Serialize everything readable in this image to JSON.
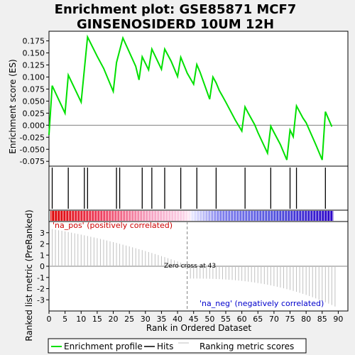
{
  "chart_data": {
    "type": "line",
    "title_lines": [
      "Enrichment plot: GSE85871 MCF7",
      "GINSENOSIDERD 10UM 12H"
    ],
    "xlabel": "Rank in Ordered Dataset",
    "es_ylabel": "Enrichment score (ES)",
    "rank_ylabel": "Ranked list metric (PreRanked)",
    "xlim": [
      0,
      93
    ],
    "x_ticks": [
      0,
      5,
      10,
      15,
      20,
      25,
      30,
      35,
      40,
      45,
      50,
      55,
      60,
      65,
      70,
      75,
      80,
      85,
      90
    ],
    "es_ylim": [
      -0.085,
      0.195
    ],
    "es_ticks": [
      -0.075,
      -0.05,
      -0.025,
      0.0,
      0.025,
      0.05,
      0.075,
      0.1,
      0.125,
      0.15,
      0.175
    ],
    "rank_ylim": [
      -4,
      4
    ],
    "rank_ticks": [
      -3,
      -2,
      -1,
      0,
      1,
      2,
      3
    ],
    "es_profile": {
      "x": [
        0,
        1,
        5,
        6,
        10,
        12,
        15,
        17,
        20,
        21,
        23,
        27,
        28,
        29,
        31,
        32,
        35,
        36,
        38,
        40,
        41,
        43,
        45,
        46,
        47,
        50,
        51,
        52,
        53,
        54,
        55,
        58,
        60,
        61,
        62,
        64,
        65,
        68,
        69,
        70,
        72,
        74,
        75,
        76,
        77,
        79,
        80,
        83,
        85,
        86,
        88
      ],
      "es": [
        -0.02,
        0.082,
        0.025,
        0.104,
        0.048,
        0.183,
        0.143,
        0.118,
        0.07,
        0.13,
        0.181,
        0.122,
        0.094,
        0.142,
        0.115,
        0.158,
        0.116,
        0.158,
        0.133,
        0.101,
        0.141,
        0.108,
        0.085,
        0.126,
        0.11,
        0.054,
        0.1,
        0.088,
        0.072,
        0.06,
        0.048,
        0.01,
        -0.012,
        0.038,
        0.025,
        0.001,
        -0.015,
        -0.058,
        -0.002,
        -0.015,
        -0.04,
        -0.072,
        -0.01,
        -0.024,
        0.04,
        0.015,
        0.005,
        -0.04,
        -0.072,
        0.028,
        -0.003
      ]
    },
    "hits": [
      1,
      6,
      11,
      12,
      21,
      22,
      29,
      32,
      36,
      41,
      46,
      52,
      61,
      69,
      75,
      77,
      86
    ],
    "ranked_metric": {
      "n": 89,
      "start": 3.3,
      "end": -3.6,
      "zero_cross": 43
    },
    "labels": {
      "pos": "'na_pos' (positively correlated)",
      "neg": "'na_neg' (negatively correlated)",
      "zero_cross": "Zero cross at 43"
    },
    "colors": {
      "es_line": "#00e000",
      "pos_label": "#cc0000",
      "neg_label": "#0000cc",
      "metric_line": "#c0c0c0",
      "zero_dash": "#808080"
    },
    "legend": {
      "items": [
        {
          "label": "Enrichment profile"
        },
        {
          "label": "Hits"
        },
        {
          "label": "Ranking metric scores"
        }
      ]
    }
  }
}
